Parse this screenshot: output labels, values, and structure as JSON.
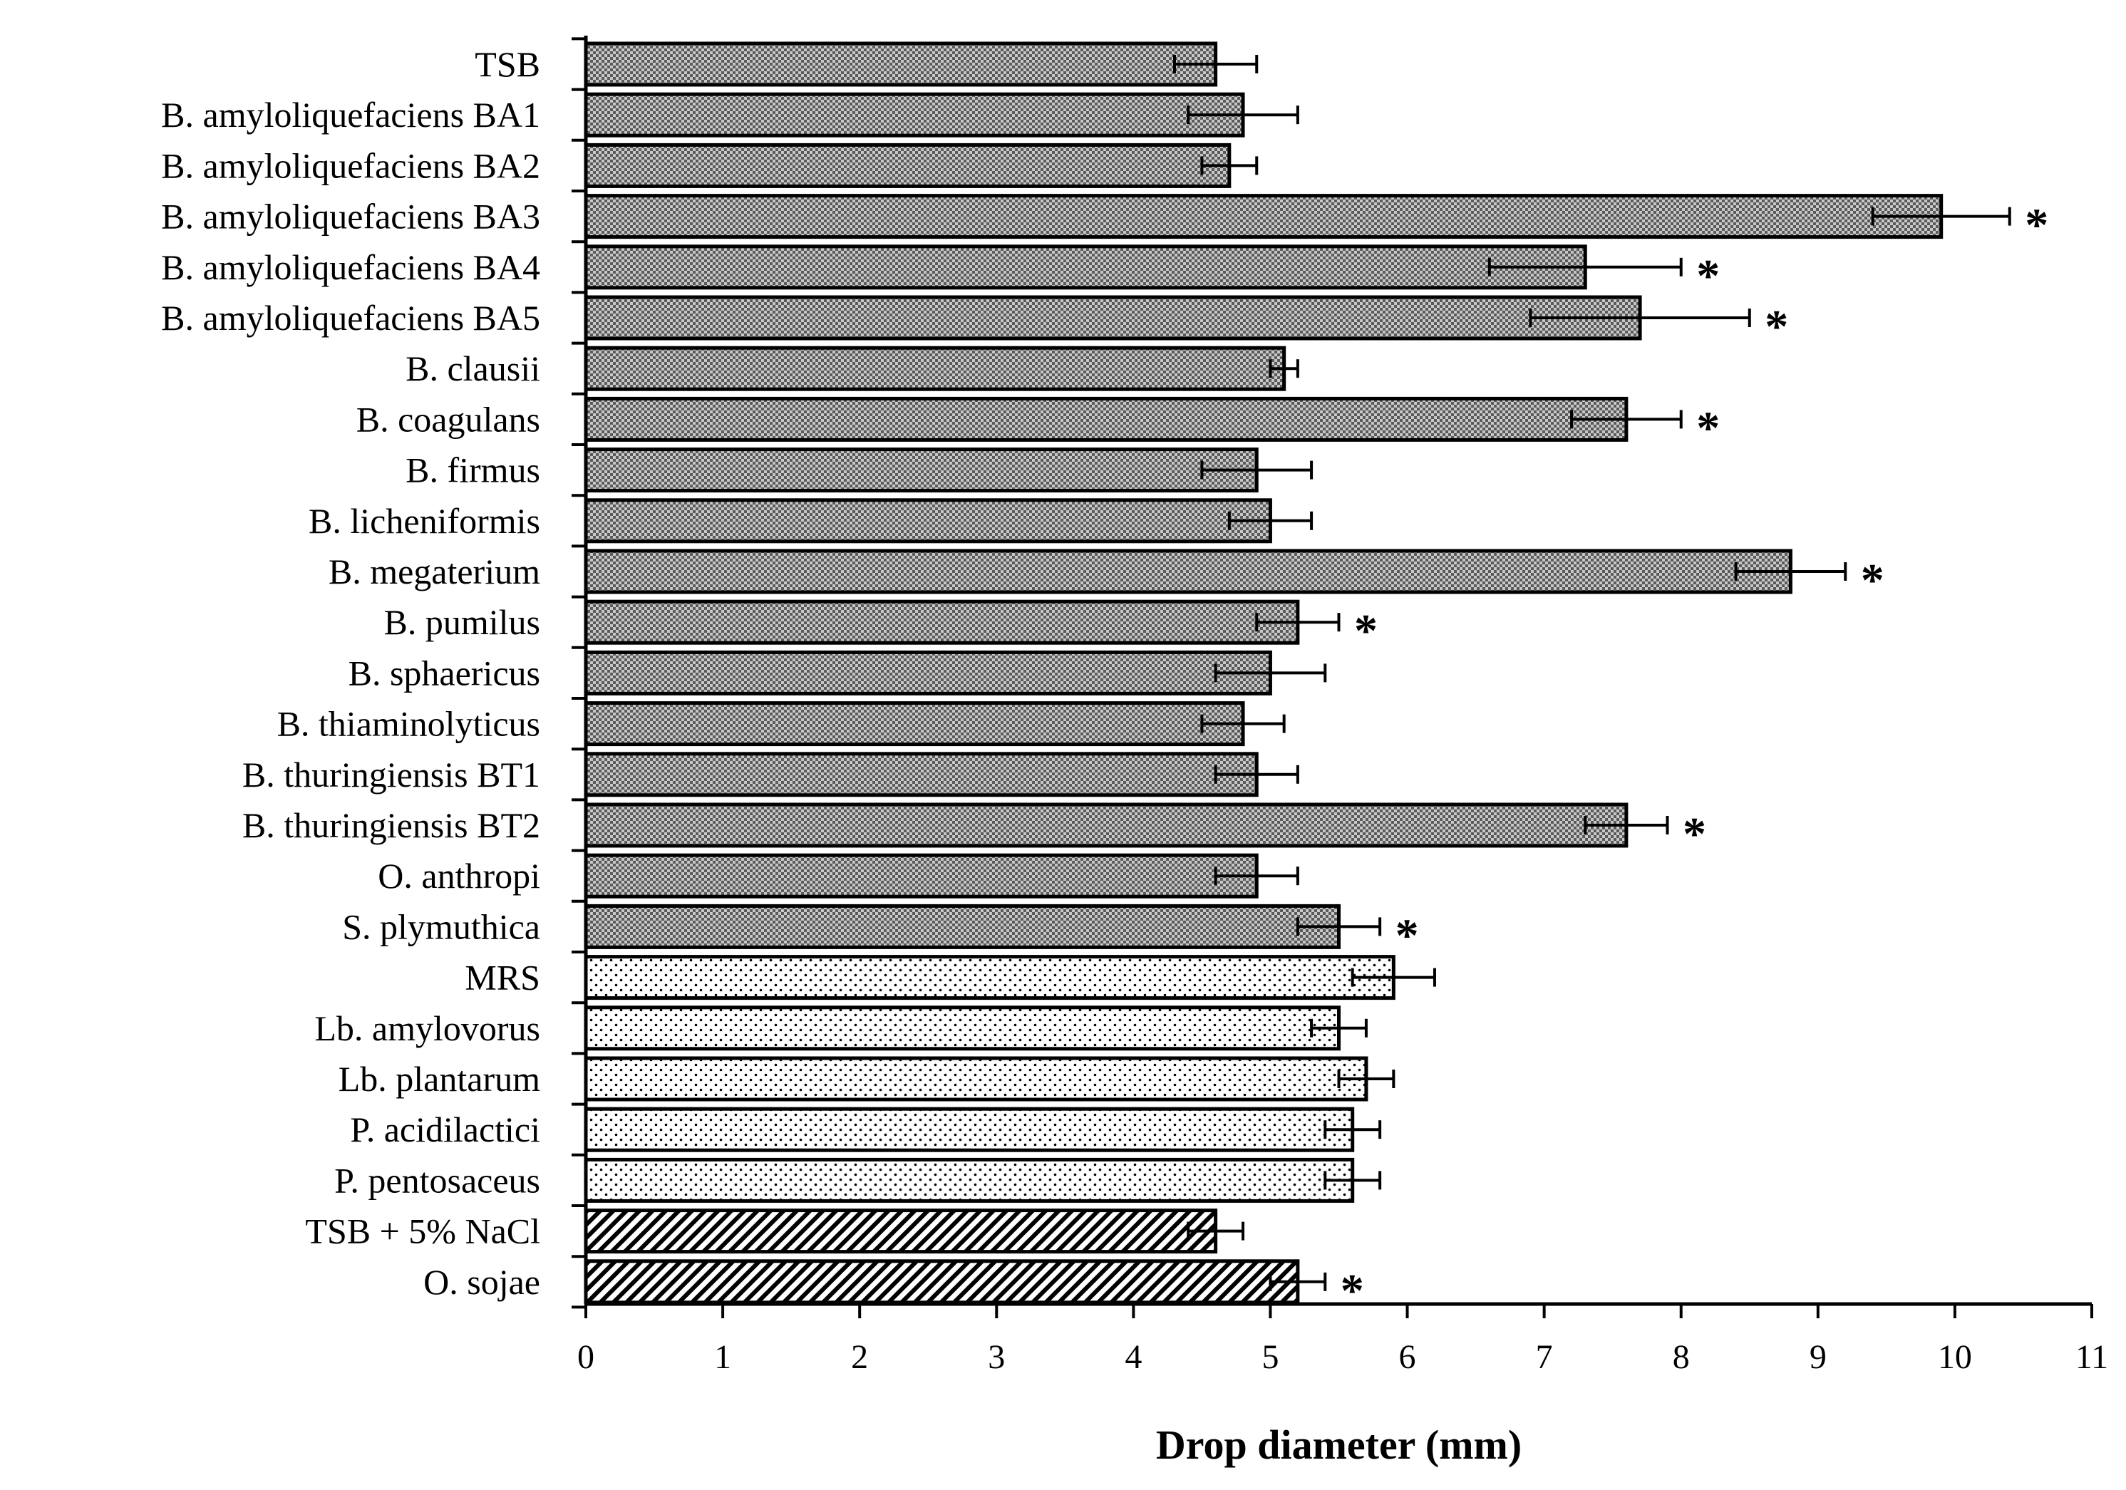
{
  "chart_data": {
    "type": "bar",
    "orientation": "horizontal",
    "xlabel": "Drop diameter (mm)",
    "ylabel": "",
    "xlim": [
      0,
      11
    ],
    "xticks": [
      0,
      1,
      2,
      3,
      4,
      5,
      6,
      7,
      8,
      9,
      10,
      11
    ],
    "grid": false,
    "categories": [
      "TSB",
      "B. amyloliquefaciens BA1",
      "B. amyloliquefaciens BA2",
      "B. amyloliquefaciens BA3",
      "B. amyloliquefaciens BA4",
      "B. amyloliquefaciens BA5",
      "B. clausii",
      "B. coagulans",
      "B. firmus",
      "B. licheniformis",
      "B. megaterium",
      "B. pumilus",
      "B. sphaericus",
      "B. thiaminolyticus",
      "B. thuringiensis BT1",
      "B. thuringiensis BT2",
      "O. anthropi",
      "S. plymuthica",
      "MRS",
      "Lb. amylovorus",
      "Lb. plantarum",
      "P. acidilactici",
      "P. pentosaceus",
      "TSB + 5% NaCl",
      "O. sojae"
    ],
    "values": [
      4.6,
      4.8,
      4.7,
      9.9,
      7.3,
      7.7,
      5.1,
      7.6,
      4.9,
      5.0,
      8.8,
      5.2,
      5.0,
      4.8,
      4.9,
      7.6,
      4.9,
      5.5,
      5.9,
      5.5,
      5.7,
      5.6,
      5.6,
      4.6,
      5.2
    ],
    "errors": [
      0.3,
      0.4,
      0.2,
      0.5,
      0.7,
      0.8,
      0.1,
      0.4,
      0.4,
      0.3,
      0.4,
      0.3,
      0.4,
      0.3,
      0.3,
      0.3,
      0.3,
      0.3,
      0.3,
      0.2,
      0.2,
      0.2,
      0.2,
      0.2,
      0.2
    ],
    "groups": [
      "TSB",
      "TSB",
      "TSB",
      "TSB",
      "TSB",
      "TSB",
      "TSB",
      "TSB",
      "TSB",
      "TSB",
      "TSB",
      "TSB",
      "TSB",
      "TSB",
      "TSB",
      "TSB",
      "TSB",
      "TSB",
      "MRS",
      "MRS",
      "MRS",
      "MRS",
      "MRS",
      "NaCl",
      "NaCl"
    ],
    "significant": [
      false,
      false,
      false,
      true,
      true,
      true,
      false,
      true,
      false,
      false,
      true,
      true,
      false,
      false,
      false,
      true,
      false,
      true,
      false,
      false,
      false,
      false,
      false,
      false,
      true
    ],
    "significance_marker": "*"
  },
  "colors": {
    "checker_dark": "#5a5a5a",
    "checker_light": "#c8c8c8",
    "dot": "#000000",
    "background": "#ffffff",
    "stroke": "#000000"
  }
}
